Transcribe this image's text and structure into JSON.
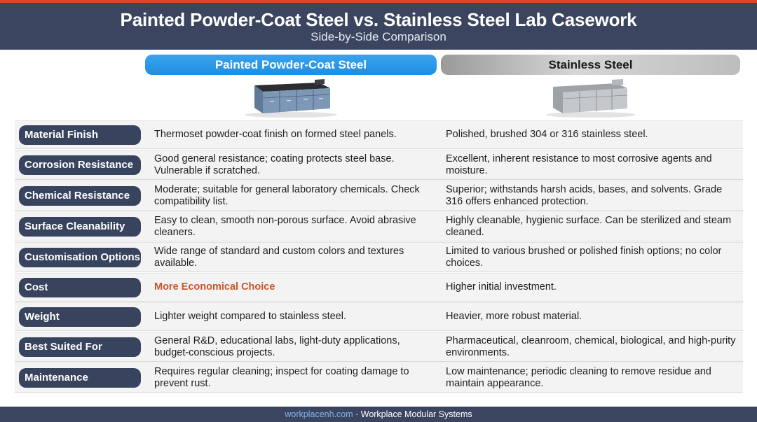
{
  "header": {
    "title": "Painted Powder-Coat Steel vs. Stainless Steel Lab Casework",
    "subtitle": "Side-by-Side Comparison"
  },
  "columns": {
    "powder": "Painted Powder-Coat Steel",
    "stainless": "Stainless Steel"
  },
  "rows": [
    {
      "label": "Material Finish",
      "powder": "Thermoset powder-coat finish on formed steel panels.",
      "stainless": "Polished, brushed 304 or 316 stainless steel."
    },
    {
      "label": "Corrosion Resistance",
      "powder": "Good general resistance; coating protects steel base. Vulnerable if scratched.",
      "stainless": "Excellent, inherent resistance to most corrosive agents and moisture."
    },
    {
      "label": "Chemical Resistance",
      "powder": "Moderate; suitable for general laboratory chemicals. Check compatibility list.",
      "stainless": "Superior; withstands harsh acids, bases, and solvents. Grade 316 offers enhanced protection."
    },
    {
      "label": "Surface Cleanability",
      "powder": "Easy to clean, smooth non-porous surface. Avoid abrasive cleaners.",
      "stainless": "Highly cleanable,  hygienic surface. Can be sterilized and steam cleaned."
    },
    {
      "label": "Customisation Options",
      "powder": "Wide range of standard and custom colors and textures available.",
      "stainless": "Limited to various brushed or polished finish options; no color choices."
    },
    {
      "label": "Cost",
      "powder": "More Economical Choice",
      "stainless": "Higher initial investment."
    },
    {
      "label": "Weight",
      "powder": "Lighter weight compared to stainless steel.",
      "stainless": "Heavier, more robust material."
    },
    {
      "label": "Best Suited For",
      "powder": "General R&D, educational labs, light-duty applications, budget-conscious projects.",
      "stainless": "Pharmaceutical, cleanroom, chemical, biological, and high-purity environments."
    },
    {
      "label": "Maintenance",
      "powder": "Requires regular cleaning; inspect for coating damage to prevent rust.",
      "stainless": "Low maintenance; periodic cleaning to remove residue and maintain appearance."
    }
  ],
  "footer": {
    "site": "workplacenh.com",
    "separator": " · ",
    "company": "Workplace Modular Systems"
  },
  "colors": {
    "header_bg": "#3b4560",
    "accent_red": "#d9482b",
    "powder_blue": "#2a98e8",
    "highlight": "#c9542e"
  }
}
